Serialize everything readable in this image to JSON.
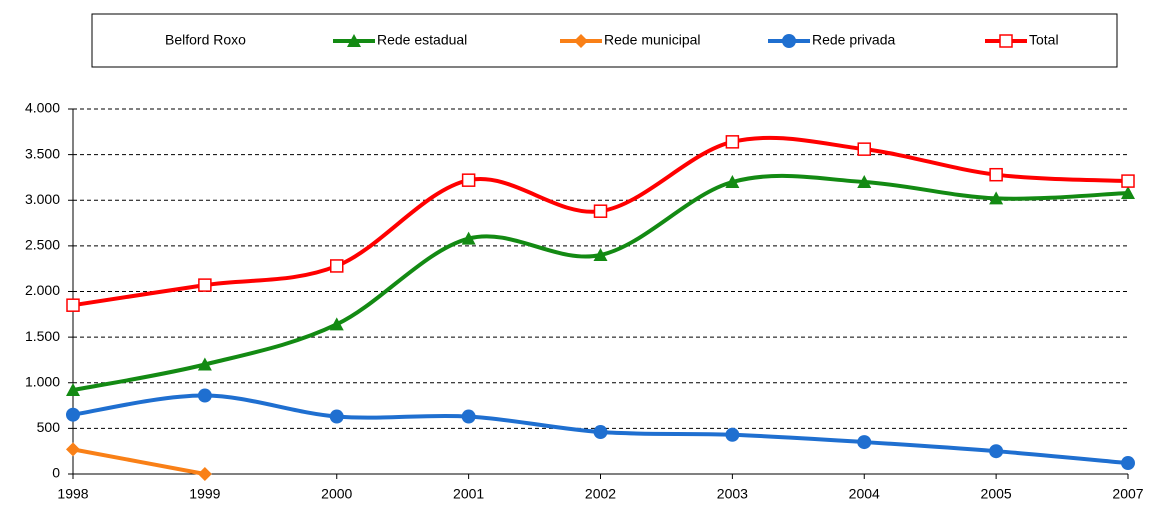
{
  "chart_data": {
    "type": "line",
    "legend_title": "Belford Roxo",
    "categories": [
      "1998",
      "1999",
      "2000",
      "2001",
      "2002",
      "2003",
      "2004",
      "2005",
      "2007"
    ],
    "series": [
      {
        "name": "Rede estadual",
        "color": "#138a13",
        "marker": "triangle",
        "values": [
          920,
          1200,
          1640,
          2580,
          2400,
          3200,
          3200,
          3020,
          3080
        ]
      },
      {
        "name": "Rede municipal",
        "color": "#f98017",
        "marker": "diamond",
        "values": [
          270,
          0,
          null,
          null,
          null,
          null,
          null,
          null,
          null
        ]
      },
      {
        "name": "Rede privada",
        "color": "#1f6fd0",
        "marker": "circle",
        "values": [
          650,
          860,
          630,
          630,
          460,
          430,
          350,
          250,
          120
        ]
      },
      {
        "name": "Total",
        "color": "#ff0000",
        "marker": "square",
        "values": [
          1850,
          2070,
          2280,
          3220,
          2880,
          3640,
          3560,
          3280,
          3210
        ]
      }
    ],
    "ylim": [
      0,
      4000
    ],
    "yticks": [
      0,
      500,
      {
        "value": 1000,
        "label": "1.000"
      },
      {
        "value": 1500,
        "label": "1.500"
      },
      {
        "value": 2000,
        "label": "2.000"
      },
      {
        "value": 2500,
        "label": "2.500"
      },
      {
        "value": 3000,
        "label": "3.000"
      },
      {
        "value": 3500,
        "label": "3.500"
      },
      {
        "value": 4000,
        "label": "4.000"
      }
    ],
    "grid": true,
    "smooth": true,
    "legend": "top"
  }
}
